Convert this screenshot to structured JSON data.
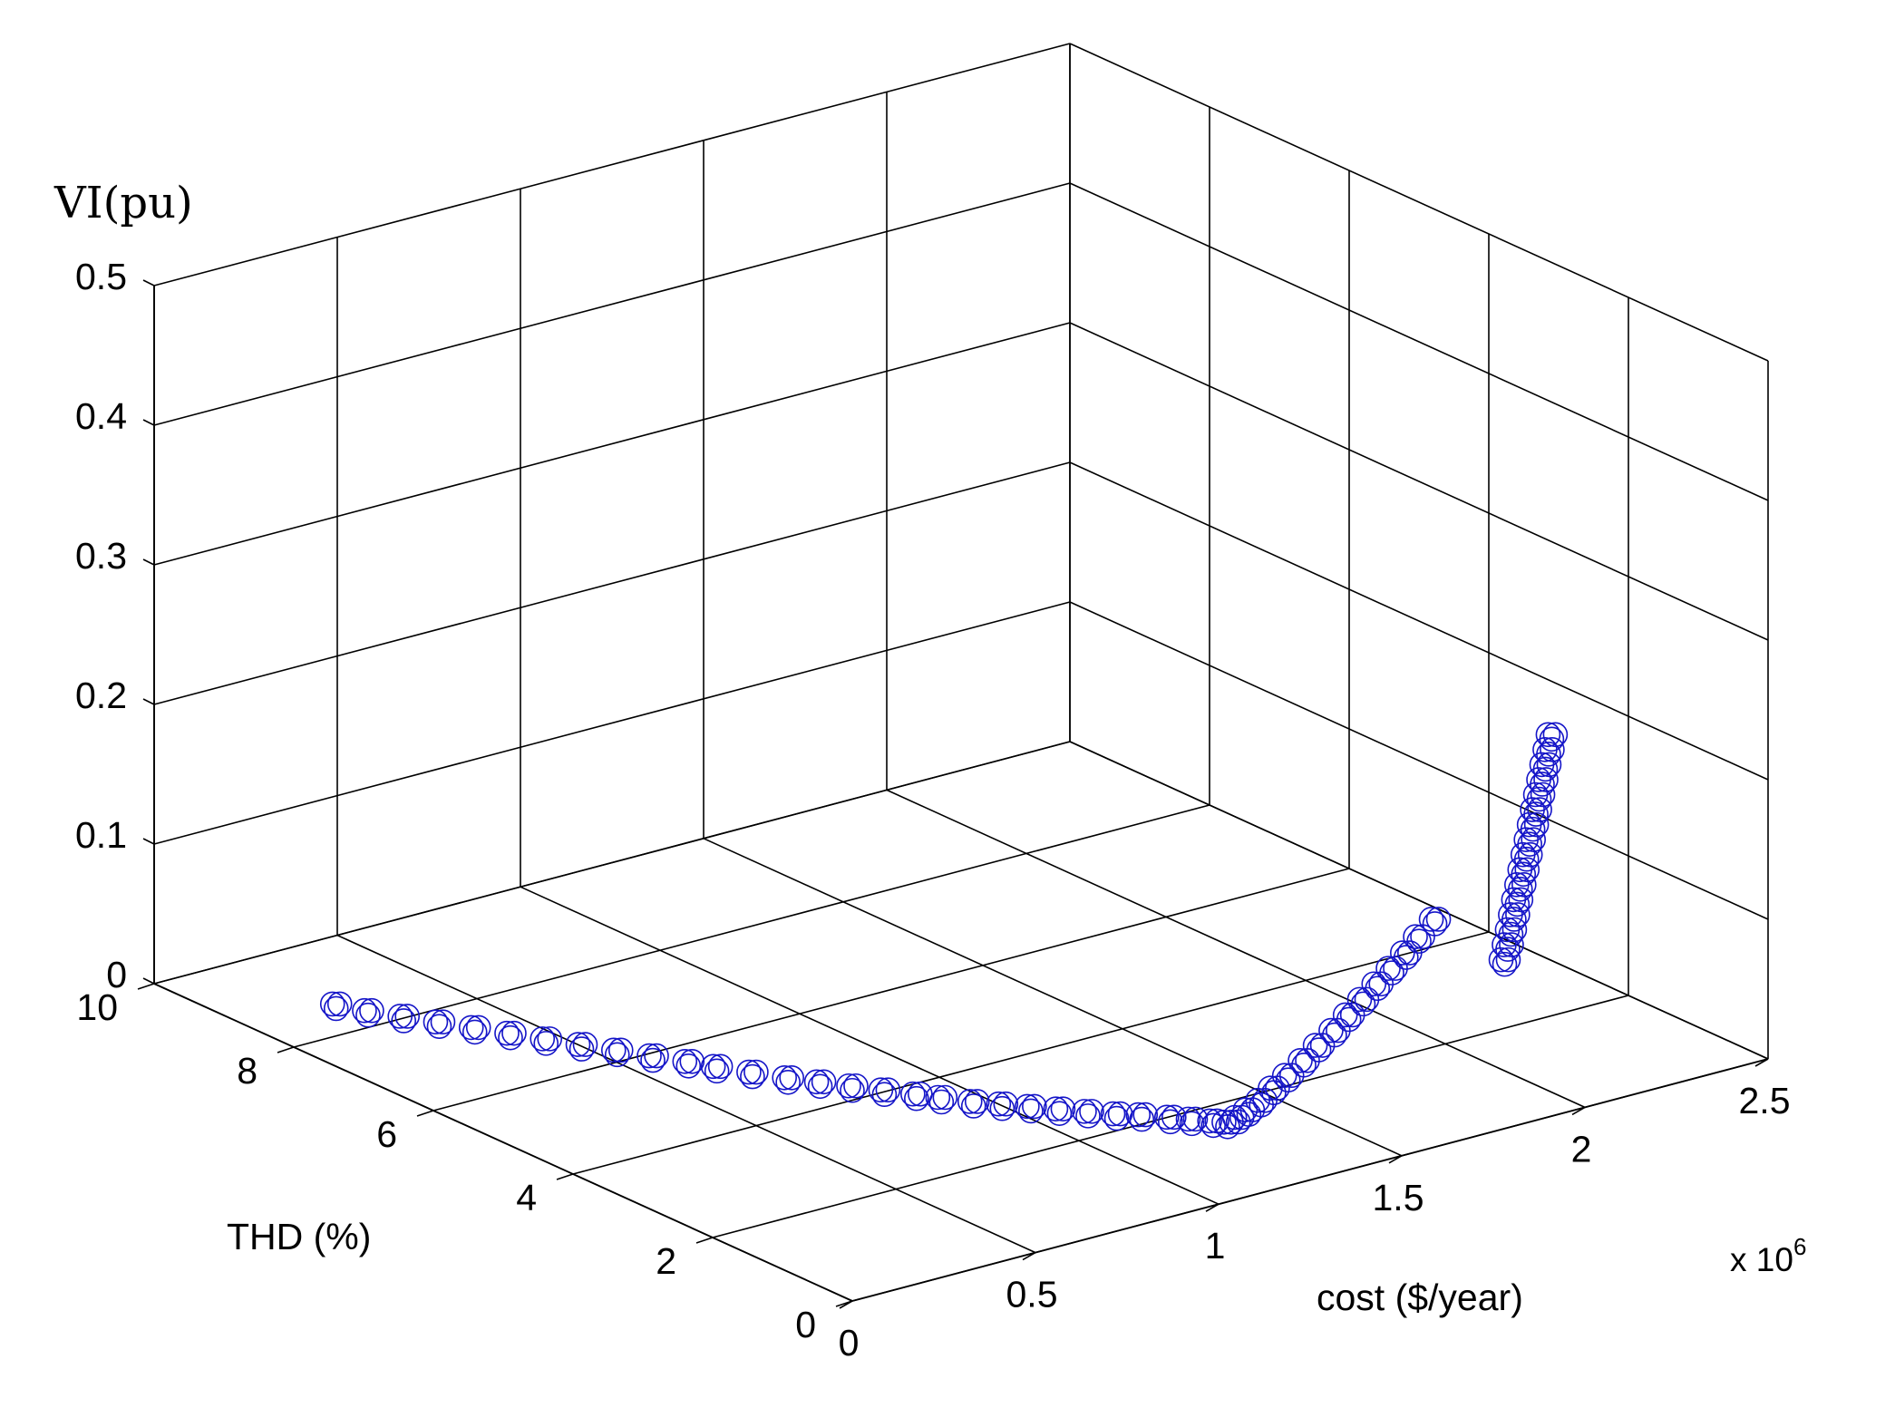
{
  "chart_data": {
    "type": "scatter",
    "projection": "3d",
    "grid": true,
    "marker": "open-circle",
    "colors": {
      "series": "#1515c8",
      "axes": "#000000",
      "background": "#ffffff"
    },
    "axes": {
      "x": {
        "label": "cost ($/year)",
        "multiplier": "x 10",
        "multiplier_exp": "6",
        "range": [
          0,
          2.5
        ],
        "ticks": [
          0,
          0.5,
          1,
          1.5,
          2,
          2.5
        ],
        "tick_labels": [
          "0",
          "0.5",
          "1",
          "1.5",
          "2",
          "2.5"
        ]
      },
      "y": {
        "label": "THD (%)",
        "range": [
          0,
          10
        ],
        "ticks": [
          0,
          2,
          4,
          6,
          8,
          10
        ],
        "tick_labels": [
          "0",
          "2",
          "4",
          "6",
          "8",
          "10"
        ]
      },
      "z": {
        "label": "VI(pu)",
        "range": [
          0,
          0.5
        ],
        "ticks": [
          0,
          0.1,
          0.2,
          0.3,
          0.4,
          0.5
        ],
        "tick_labels": [
          "0",
          "0.1",
          "0.2",
          "0.3",
          "0.4",
          "0.5"
        ]
      }
    },
    "series": [
      {
        "points": [
          [
            0.23,
            8.6,
            0
          ],
          [
            0.26,
            8.3,
            0
          ],
          [
            0.3,
            8.0,
            0
          ],
          [
            0.34,
            7.7,
            0
          ],
          [
            0.38,
            7.4,
            0
          ],
          [
            0.42,
            7.1,
            0
          ],
          [
            0.46,
            6.8,
            0
          ],
          [
            0.5,
            6.5,
            0
          ],
          [
            0.54,
            6.2,
            0
          ],
          [
            0.58,
            5.9,
            0
          ],
          [
            0.62,
            5.6,
            0
          ],
          [
            0.65,
            5.35,
            0
          ],
          [
            0.69,
            5.05,
            0
          ],
          [
            0.73,
            4.75,
            0
          ],
          [
            0.77,
            4.5,
            0
          ],
          [
            0.81,
            4.25,
            0
          ],
          [
            0.85,
            4.0,
            0
          ],
          [
            0.89,
            3.75,
            0
          ],
          [
            0.92,
            3.55,
            0
          ],
          [
            0.96,
            3.3,
            0
          ],
          [
            1.0,
            3.1,
            0
          ],
          [
            1.04,
            2.9,
            0
          ],
          [
            1.08,
            2.7,
            0
          ],
          [
            1.12,
            2.5,
            0
          ],
          [
            1.16,
            2.3,
            0
          ],
          [
            1.2,
            2.15,
            0
          ],
          [
            1.24,
            1.95,
            0
          ],
          [
            1.27,
            1.8,
            0
          ],
          [
            1.3,
            1.65,
            0
          ],
          [
            1.32,
            1.55,
            0
          ],
          [
            1.33,
            1.45,
            0.005
          ],
          [
            1.34,
            1.35,
            0.012
          ],
          [
            1.355,
            1.25,
            0.02
          ],
          [
            1.37,
            1.15,
            0.03
          ],
          [
            1.39,
            1.05,
            0.04
          ],
          [
            1.41,
            0.93,
            0.052
          ],
          [
            1.43,
            0.82,
            0.064
          ],
          [
            1.45,
            0.7,
            0.076
          ],
          [
            1.47,
            0.6,
            0.088
          ],
          [
            1.49,
            0.5,
            0.1
          ],
          [
            1.51,
            0.4,
            0.112
          ],
          [
            1.53,
            0.3,
            0.124
          ],
          [
            1.55,
            0.2,
            0.136
          ],
          [
            1.57,
            0.12,
            0.148
          ],
          [
            1.6,
            0.05,
            0.16
          ]
        ]
      },
      {
        "points": [
          [
            1.8,
            0.1,
            0.116
          ],
          [
            1.82,
            0.16,
            0.124
          ],
          [
            1.84,
            0.22,
            0.132
          ],
          [
            1.86,
            0.28,
            0.14
          ],
          [
            1.88,
            0.34,
            0.148
          ],
          [
            1.9,
            0.4,
            0.156
          ],
          [
            1.92,
            0.46,
            0.164
          ],
          [
            1.94,
            0.52,
            0.172
          ],
          [
            1.96,
            0.58,
            0.18
          ],
          [
            1.98,
            0.64,
            0.188
          ],
          [
            2.0,
            0.7,
            0.196
          ],
          [
            2.02,
            0.76,
            0.204
          ],
          [
            2.04,
            0.82,
            0.212
          ],
          [
            2.06,
            0.88,
            0.22
          ],
          [
            2.08,
            0.94,
            0.228
          ],
          [
            2.1,
            1.0,
            0.236
          ]
        ]
      }
    ]
  }
}
